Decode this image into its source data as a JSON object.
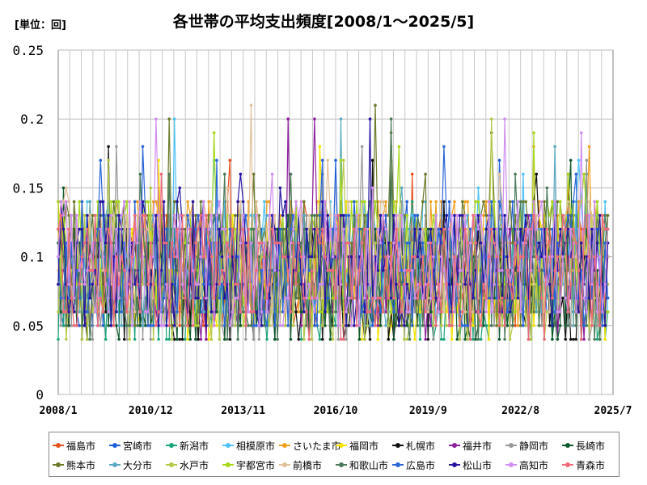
{
  "unit_label": "[単位：回]",
  "title": "各世帯の平均支出頻度[2008/1～2025/5]",
  "chart_data": {
    "type": "line",
    "title": "各世帯の平均支出頻度[2008/1～2025/5]",
    "unit": "[単位：回]",
    "x_start": "2008/1",
    "x_end": "2025/7",
    "xticks": [
      "2008/1",
      "2010/12",
      "2013/11",
      "2016/10",
      "2019/9",
      "2022/8",
      "2025/7"
    ],
    "ylim": [
      0,
      0.25
    ],
    "yticks": [
      "0",
      "0.05",
      "0.1",
      "0.15",
      "0.2",
      "0.25"
    ],
    "ytick_values": [
      0,
      0.05,
      0.1,
      0.15,
      0.2,
      0.25
    ],
    "grid": true,
    "legend_position": "bottom",
    "value_range_note": "values mostly between 0.01 and 0.23",
    "series": [
      {
        "name": "福島市",
        "color": "#e8501e"
      },
      {
        "name": "宮崎市",
        "color": "#1f5fd6"
      },
      {
        "name": "新潟市",
        "color": "#1aa37a"
      },
      {
        "name": "相模原市",
        "color": "#4fc3f7"
      },
      {
        "name": "さいたま市",
        "color": "#f0a020"
      },
      {
        "name": "福岡市",
        "color": "#f5e400"
      },
      {
        "name": "札幌市",
        "color": "#111111"
      },
      {
        "name": "福井市",
        "color": "#8e1f9e"
      },
      {
        "name": "静岡市",
        "color": "#9a9a9a"
      },
      {
        "name": "長崎市",
        "color": "#0f5a2e"
      },
      {
        "name": "熊本市",
        "color": "#6b7a2a"
      },
      {
        "name": "大分市",
        "color": "#5aa9c2"
      },
      {
        "name": "水戸市",
        "color": "#b6c94a"
      },
      {
        "name": "宇都宮市",
        "color": "#a8d81c"
      },
      {
        "name": "前橋市",
        "color": "#e0c09a"
      },
      {
        "name": "和歌山市",
        "color": "#4a7a5a"
      },
      {
        "name": "広島市",
        "color": "#2a66d8"
      },
      {
        "name": "松山市",
        "color": "#2414a0"
      },
      {
        "name": "高知市",
        "color": "#d08ef0"
      },
      {
        "name": "青森市",
        "color": "#f06a7a"
      }
    ]
  }
}
